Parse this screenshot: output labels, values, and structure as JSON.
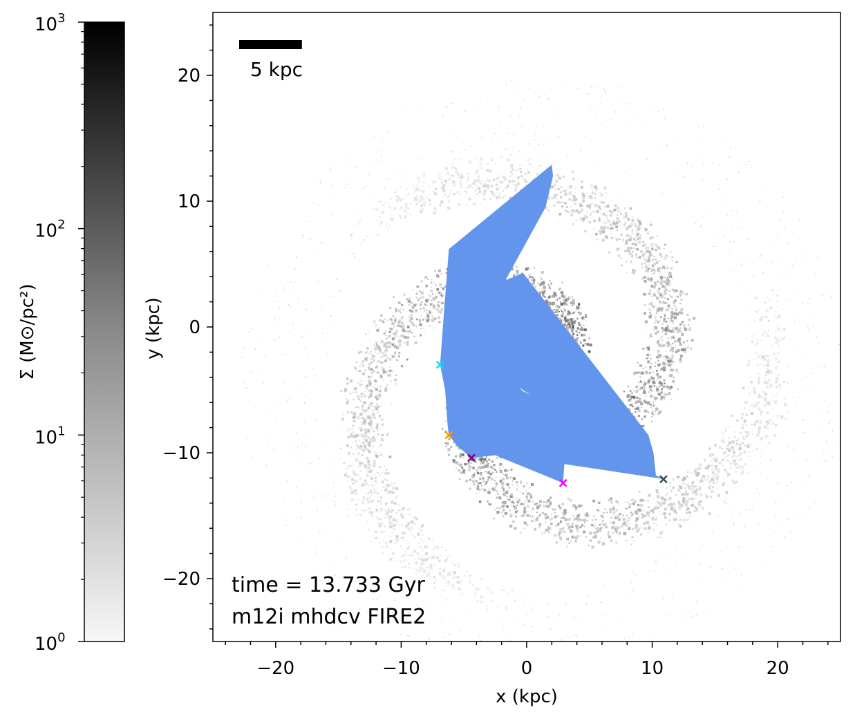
{
  "chart_data": {
    "type": "heatmap",
    "x": {
      "label": "x (kpc)",
      "range": [
        -25,
        25
      ],
      "ticks": [
        -20,
        -10,
        0,
        10,
        20
      ],
      "tick_labels": [
        "−20",
        "−10",
        "0",
        "10",
        "20"
      ],
      "minor_step": 2
    },
    "y": {
      "label": "y (kpc)",
      "range": [
        -25,
        25
      ],
      "ticks": [
        -20,
        -10,
        0,
        10,
        20
      ],
      "tick_labels": [
        "−20",
        "−10",
        "0",
        "10",
        "20"
      ],
      "minor_step": 2
    },
    "colorbar": {
      "scale": "log",
      "range": [
        1,
        1000
      ],
      "ticks": [
        {
          "value": 1,
          "base": "10",
          "exp": "0"
        },
        {
          "value": 10,
          "base": "10",
          "exp": "1"
        },
        {
          "value": 100,
          "base": "10",
          "exp": "2"
        },
        {
          "value": 1000,
          "base": "10",
          "exp": "3"
        }
      ],
      "label": "Σ (M⊙/pc²)",
      "colormap": "Greys",
      "color_low": "#f7f7f7",
      "color_high": "#000000"
    },
    "scale_bar": {
      "length_kpc": 5,
      "label": "5 kpc",
      "color": "#000000"
    },
    "annotations": [
      "time = 13.733 Gyr",
      "m12i mhdcv FIRE2"
    ],
    "region_color": "#6495ed",
    "region_polygon": [
      [
        -6.2,
        6.2
      ],
      [
        2.0,
        12.9
      ],
      [
        2.1,
        12.0
      ],
      [
        1.5,
        9.5
      ],
      [
        -1.7,
        3.7
      ],
      [
        -0.3,
        4.3
      ],
      [
        9.7,
        -8.6
      ],
      [
        10.1,
        -10.0
      ],
      [
        10.3,
        -11.8
      ],
      [
        11.0,
        -12.1
      ],
      [
        3.0,
        -10.9
      ],
      [
        2.9,
        -12.4
      ],
      [
        -2.5,
        -10.2
      ],
      [
        -4.4,
        -10.4
      ],
      [
        -5.5,
        -9.5
      ],
      [
        -6.2,
        -8.6
      ],
      [
        -6.3,
        -7.8
      ],
      [
        -6.5,
        -5.0
      ],
      [
        -6.9,
        -3.0
      ],
      [
        -6.6,
        1.0
      ]
    ],
    "region_hole": [
      [
        -0.6,
        -4.8
      ],
      [
        0.3,
        -5.4
      ],
      [
        0.9,
        -5.7
      ],
      [
        -0.3,
        -5.1
      ]
    ],
    "markers": [
      {
        "x": -6.9,
        "y": -3.0,
        "color": "#00e5ee"
      },
      {
        "x": -6.2,
        "y": -8.6,
        "color": "#ff9900"
      },
      {
        "x": -4.4,
        "y": -10.4,
        "color": "#800080"
      },
      {
        "x": 2.9,
        "y": -12.4,
        "color": "#ff00ff"
      },
      {
        "x": 10.9,
        "y": -12.1,
        "color": "#2f4f4f"
      }
    ]
  }
}
